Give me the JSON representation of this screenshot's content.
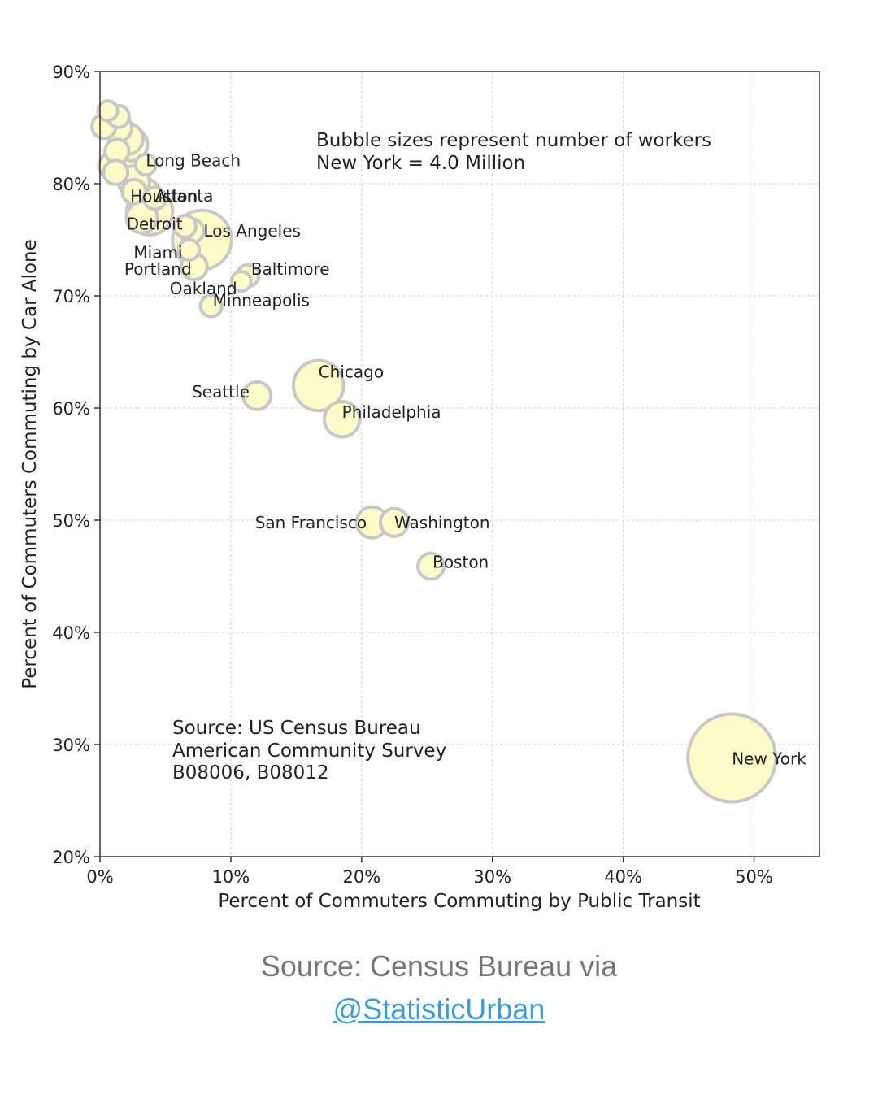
{
  "chart_data": {
    "type": "scatter",
    "title": "",
    "xlabel": "Percent of Commuters Commuting by Public Transit",
    "ylabel": "Percent of Commuters Commuting by Car Alone",
    "xlim": [
      0,
      55
    ],
    "ylim": [
      20,
      90
    ],
    "xticks": [
      "0%",
      "10%",
      "20%",
      "30%",
      "40%",
      "50%"
    ],
    "xtick_values": [
      0,
      10,
      20,
      30,
      40,
      50
    ],
    "yticks": [
      "20%",
      "30%",
      "40%",
      "50%",
      "60%",
      "70%",
      "80%",
      "90%"
    ],
    "ytick_values": [
      20,
      30,
      40,
      50,
      60,
      70,
      80,
      90
    ],
    "grid": true,
    "note_size": [
      "Bubble sizes represent number of workers",
      "New York = 4.0 Million"
    ],
    "note_source": [
      "Source: US Census Bureau",
      "American Community Survey",
      "B08006, B08012"
    ],
    "labeled_points": [
      {
        "name": "New York",
        "x": 48.3,
        "y": 28.8,
        "workers_million": 4.0
      },
      {
        "name": "Los Angeles",
        "x": 7.8,
        "y": 75.0,
        "workers_million": 1.8
      },
      {
        "name": "Chicago",
        "x": 16.7,
        "y": 62.0,
        "workers_million": 1.3
      },
      {
        "name": "Houston",
        "x": 3.8,
        "y": 77.5,
        "workers_million": 1.1
      },
      {
        "name": "Philadelphia",
        "x": 18.5,
        "y": 59.0,
        "workers_million": 0.65
      },
      {
        "name": "Long Beach",
        "x": 3.5,
        "y": 81.7,
        "workers_million": 0.22
      },
      {
        "name": "Atlanta",
        "x": 4.2,
        "y": 78.7,
        "workers_million": 0.25
      },
      {
        "name": "Detroit",
        "x": 6.5,
        "y": 76.2,
        "workers_million": 0.25
      },
      {
        "name": "Miami",
        "x": 6.8,
        "y": 74.1,
        "workers_million": 0.22
      },
      {
        "name": "Portland",
        "x": 7.2,
        "y": 72.6,
        "workers_million": 0.35
      },
      {
        "name": "Oakland",
        "x": 10.8,
        "y": 71.3,
        "workers_million": 0.2
      },
      {
        "name": "Baltimore",
        "x": 11.3,
        "y": 71.8,
        "workers_million": 0.25
      },
      {
        "name": "Minneapolis",
        "x": 8.5,
        "y": 69.1,
        "workers_million": 0.24
      },
      {
        "name": "Seattle",
        "x": 12.0,
        "y": 61.1,
        "workers_million": 0.4
      },
      {
        "name": "San Francisco",
        "x": 20.8,
        "y": 49.8,
        "workers_million": 0.5
      },
      {
        "name": "Washington",
        "x": 22.5,
        "y": 49.8,
        "workers_million": 0.4
      },
      {
        "name": "Boston",
        "x": 25.3,
        "y": 45.9,
        "workers_million": 0.35
      }
    ],
    "unlabeled_points": [
      {
        "x": 0.6,
        "y": 86.5,
        "workers_million": 0.2
      },
      {
        "x": 1.4,
        "y": 86.0,
        "workers_million": 0.25
      },
      {
        "x": 0.3,
        "y": 85.1,
        "workers_million": 0.3
      },
      {
        "x": 1.3,
        "y": 85.0,
        "workers_million": 0.45
      },
      {
        "x": 2.1,
        "y": 84.0,
        "workers_million": 0.5
      },
      {
        "x": 2.4,
        "y": 83.5,
        "workers_million": 0.55
      },
      {
        "x": 1.3,
        "y": 82.9,
        "workers_million": 0.3
      },
      {
        "x": 0.9,
        "y": 81.6,
        "workers_million": 0.35
      },
      {
        "x": 2.0,
        "y": 82.0,
        "workers_million": 0.6
      },
      {
        "x": 1.2,
        "y": 81.0,
        "workers_million": 0.3
      },
      {
        "x": 2.6,
        "y": 80.2,
        "workers_million": 0.5
      },
      {
        "x": 2.6,
        "y": 79.3,
        "workers_million": 0.3
      },
      {
        "x": 3.4,
        "y": 79.0,
        "workers_million": 0.55
      },
      {
        "x": 3.2,
        "y": 77.0,
        "workers_million": 0.5
      },
      {
        "x": 7.0,
        "y": 75.8,
        "workers_million": 0.3
      }
    ],
    "reference_workers_million": 4.0
  },
  "caption": {
    "source_text": "Source: Census Bureau via",
    "credit_link": "@StatisticUrban"
  }
}
